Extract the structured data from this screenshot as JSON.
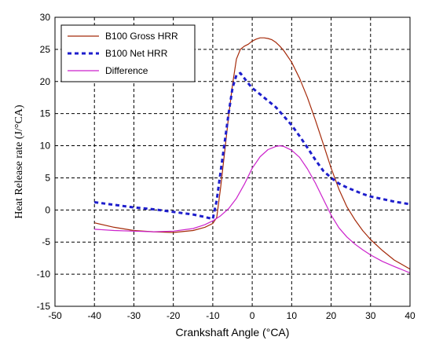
{
  "chart_data": {
    "type": "line",
    "title": "",
    "xlabel": "Crankshaft Angle  (°CA)",
    "ylabel": "Heat Release rate  (J/°CA)",
    "xlim": [
      -50,
      40
    ],
    "ylim": [
      -15,
      30
    ],
    "xticks": [
      -50,
      -40,
      -30,
      -20,
      -10,
      0,
      10,
      20,
      30,
      40
    ],
    "yticks": [
      -15,
      -10,
      -5,
      0,
      5,
      10,
      15,
      20,
      25,
      30
    ],
    "grid": true,
    "legend_position": "top-left",
    "series": [
      {
        "name": "B100 Gross HRR",
        "color": "#a52a0a",
        "style": "solid",
        "x": [
          -40,
          -35,
          -30,
          -25,
          -20,
          -15,
          -12,
          -10,
          -9,
          -8,
          -7,
          -6,
          -5,
          -4,
          -3,
          -2,
          -1,
          0,
          1,
          2,
          3,
          4,
          5,
          6,
          7,
          8,
          10,
          12,
          14,
          16,
          18,
          20,
          22,
          24,
          26,
          28,
          30,
          33,
          36,
          40
        ],
        "y": [
          -2,
          -2.7,
          -3.2,
          -3.4,
          -3.5,
          -3.2,
          -2.7,
          -2.1,
          -1.2,
          3.5,
          9,
          14.5,
          19.5,
          23.5,
          25,
          25.5,
          25.8,
          26.3,
          26.6,
          26.8,
          26.8,
          26.7,
          26.5,
          26.1,
          25.5,
          24.8,
          23,
          20.5,
          17.5,
          14,
          10.3,
          6.5,
          3.2,
          0.5,
          -1.5,
          -3.2,
          -4.6,
          -6.3,
          -7.8,
          -9.2
        ]
      },
      {
        "name": "B100 Net HRR",
        "color": "#1e1ecc",
        "style": "dashed",
        "x": [
          -40,
          -35,
          -30,
          -25,
          -20,
          -15,
          -12,
          -10,
          -9,
          -8,
          -7,
          -6,
          -5,
          -4,
          -3,
          -2,
          -1,
          0,
          2,
          4,
          6,
          8,
          10,
          12,
          14,
          16,
          18,
          20,
          22,
          24,
          26,
          28,
          30,
          33,
          36,
          40
        ],
        "y": [
          1.2,
          0.8,
          0.4,
          0.1,
          -0.3,
          -0.7,
          -1.1,
          -1.4,
          1.5,
          6,
          10.5,
          15,
          19,
          21,
          21.3,
          20.5,
          19.7,
          19,
          18,
          17,
          16,
          14.6,
          13.2,
          11.5,
          9.7,
          7.8,
          6.1,
          5,
          4.1,
          3.5,
          3,
          2.5,
          2.1,
          1.7,
          1.3,
          0.9
        ]
      },
      {
        "name": "Difference",
        "color": "#cc22cc",
        "style": "solid",
        "x": [
          -40,
          -35,
          -30,
          -25,
          -20,
          -15,
          -12,
          -10,
          -8,
          -6,
          -4,
          -2,
          0,
          2,
          4,
          6,
          7,
          8,
          10,
          12,
          14,
          16,
          18,
          20,
          22,
          24,
          26,
          28,
          30,
          33,
          36,
          40
        ],
        "y": [
          -3,
          -3.2,
          -3.3,
          -3.4,
          -3.3,
          -2.9,
          -2.3,
          -1.7,
          -0.9,
          0.2,
          1.8,
          4,
          6.5,
          8.3,
          9.4,
          9.9,
          10,
          9.9,
          9.3,
          8.2,
          6.4,
          4.2,
          1.7,
          -0.8,
          -2.8,
          -4.2,
          -5.3,
          -6.2,
          -7,
          -8,
          -8.8,
          -9.8
        ]
      }
    ]
  }
}
